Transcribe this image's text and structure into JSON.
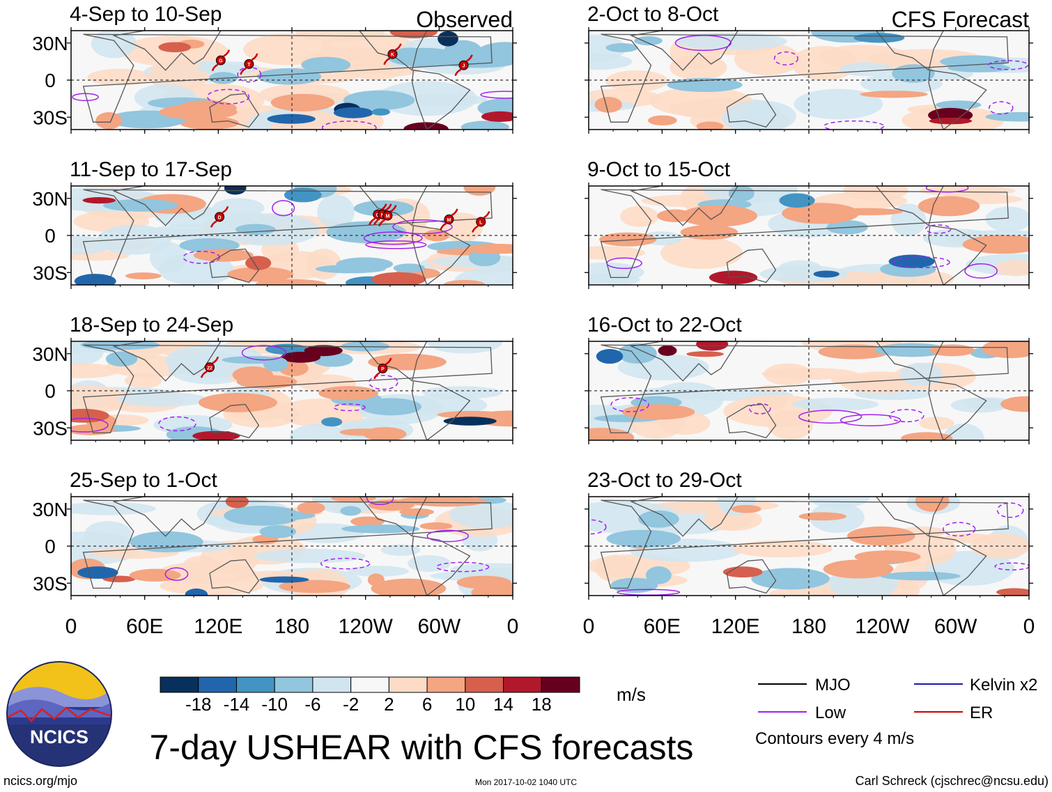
{
  "chart_data": {
    "type": "heatmap",
    "variable": "7-day USHEAR",
    "units": "m/s",
    "title": "7-day USHEAR with CFS forecasts",
    "column_labels": {
      "observed": "Observed",
      "forecast": "CFS Forecast"
    },
    "x_tick_labels": [
      "0",
      "60E",
      "120E",
      "180",
      "120W",
      "60W",
      "0"
    ],
    "x_ticks_deg": [
      0,
      60,
      120,
      180,
      240,
      300,
      360
    ],
    "y_tick_labels": [
      "30N",
      "0",
      "30S"
    ],
    "y_ticks_deg": [
      30,
      0,
      -30
    ],
    "xlim_deg": [
      0,
      360
    ],
    "ylim_deg": [
      -40,
      40
    ],
    "colorbar": {
      "boundaries": [
        -18,
        -14,
        -10,
        -6,
        -2,
        2,
        6,
        10,
        14,
        18
      ],
      "tick_labels": [
        "-18",
        "-14",
        "-10",
        "-6",
        "-2",
        "2",
        "6",
        "10",
        "14",
        "18"
      ],
      "colors": [
        "#08305c",
        "#2166ac",
        "#4393c3",
        "#92c5de",
        "#d1e5f0",
        "#f7f7f7",
        "#fddbc7",
        "#f4a582",
        "#d6604d",
        "#b2182b",
        "#67001f"
      ]
    },
    "contour_legend": [
      {
        "label": "MJO",
        "color": "#000000"
      },
      {
        "label": "Low",
        "color": "#a020f0"
      },
      {
        "label": "Kelvin x2",
        "color": "#1a1aa8"
      },
      {
        "label": "ER",
        "color": "#cc0000"
      }
    ],
    "contour_interval_text": "Contours every 4 m/s",
    "panels": [
      {
        "title": "4-Sep to 10-Sep",
        "column": "observed",
        "storms": [
          {
            "label": "G",
            "lon": 122,
            "lat": 16
          },
          {
            "label": "T",
            "lon": 145,
            "lat": 13
          },
          {
            "label": "K",
            "lon": 262,
            "lat": 21
          },
          {
            "label": "J",
            "lon": 320,
            "lat": 12
          }
        ]
      },
      {
        "title": "11-Sep to 17-Sep",
        "column": "observed",
        "storms": [
          {
            "label": "D",
            "lon": 121,
            "lat": 15
          },
          {
            "label": "O",
            "lon": 250,
            "lat": 17
          },
          {
            "label": "N",
            "lon": 254,
            "lat": 17
          },
          {
            "label": "M",
            "lon": 258,
            "lat": 16
          },
          {
            "label": "M",
            "lon": 308,
            "lat": 13
          },
          {
            "label": "L",
            "lon": 334,
            "lat": 11
          }
        ]
      },
      {
        "title": "18-Sep to 24-Sep",
        "column": "observed",
        "storms": [
          {
            "label": "22",
            "lon": 113,
            "lat": 19
          },
          {
            "label": "P",
            "lon": 254,
            "lat": 18
          }
        ]
      },
      {
        "title": "25-Sep to 1-Oct",
        "column": "observed",
        "storms": []
      },
      {
        "title": "2-Oct to 8-Oct",
        "column": "forecast",
        "storms": []
      },
      {
        "title": "9-Oct to 15-Oct",
        "column": "forecast",
        "storms": []
      },
      {
        "title": "16-Oct to 22-Oct",
        "column": "forecast",
        "storms": []
      },
      {
        "title": "23-Oct to 29-Oct",
        "column": "forecast",
        "storms": []
      }
    ]
  },
  "logo": {
    "text": "NCICS"
  },
  "footer": {
    "url": "ncics.org/mjo",
    "timestamp": "Mon 2017-10-02 1040 UTC",
    "credit": "Carl Schreck (cjschrec@ncsu.edu)"
  }
}
